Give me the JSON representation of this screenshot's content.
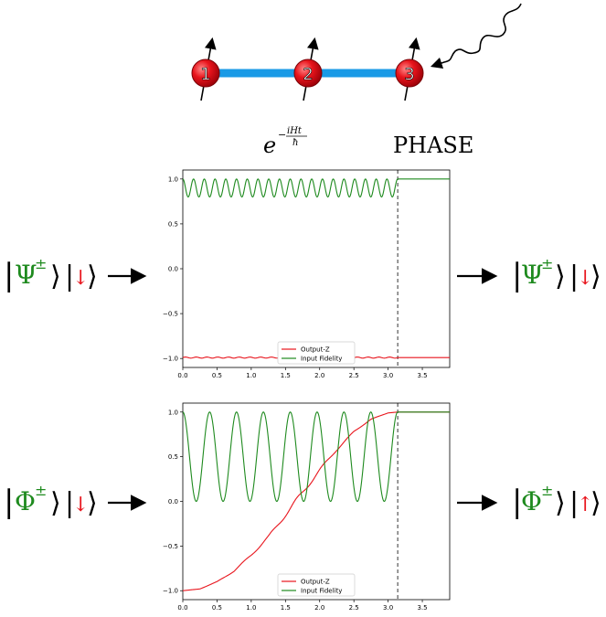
{
  "chain": {
    "qubits": [
      "1",
      "2",
      "3"
    ],
    "colors": {
      "bond": "#1a9ae6",
      "ball": "#e8141c"
    }
  },
  "labels": {
    "evolution": "e",
    "evolution_exponent_num": "iHt",
    "evolution_exponent_den": "ħ",
    "phase": "PHASE"
  },
  "states": {
    "row1_in": {
      "greek": "Ψ",
      "sup": "±",
      "spin": "↓"
    },
    "row1_out": {
      "greek": "Ψ",
      "sup": "±",
      "spin": "↓"
    },
    "row2_in": {
      "greek": "Φ",
      "sup": "±",
      "spin": "↓"
    },
    "row2_out": {
      "greek": "Φ",
      "sup": "±",
      "spin": "↑"
    },
    "colors": {
      "greek": "#1e8a1e",
      "spin": "#e8141c"
    }
  },
  "chart_data": [
    {
      "type": "line",
      "title": "",
      "xlabel": "",
      "ylabel": "",
      "xlim": [
        0,
        3.9
      ],
      "ylim": [
        -1.1,
        1.1
      ],
      "xticks": [
        "0.0",
        "0.5",
        "1.0",
        "1.5",
        "2.0",
        "2.5",
        "3.0",
        "3.5"
      ],
      "yticks": [
        "1.0",
        "0.5",
        "0.0",
        "−0.5",
        "−1.0"
      ],
      "vline_x": 3.14,
      "legend": "bottom-center",
      "series": [
        {
          "name": "Output-Z",
          "color": "#e8141c",
          "x": [
            0,
            3.14,
            3.9
          ],
          "y": [
            -0.99,
            -0.99,
            -0.99
          ]
        },
        {
          "name": "Input Fidelity",
          "color": "#1e8a1e",
          "x": [
            0,
            0.1,
            0.2,
            0.3,
            0.5,
            1.0,
            1.5,
            2.0,
            2.5,
            3.0,
            3.14,
            3.9
          ],
          "y": [
            1.0,
            0.8,
            0.98,
            0.8,
            0.9,
            0.9,
            0.9,
            0.9,
            0.9,
            0.9,
            1.0,
            1.0
          ],
          "oscillation": {
            "min": 0.8,
            "max": 1.0,
            "cycles": 20
          }
        }
      ]
    },
    {
      "type": "line",
      "title": "",
      "xlabel": "",
      "ylabel": "",
      "xlim": [
        0,
        3.9
      ],
      "ylim": [
        -1.1,
        1.1
      ],
      "xticks": [
        "0.0",
        "0.5",
        "1.0",
        "1.5",
        "2.0",
        "2.5",
        "3.0",
        "3.5"
      ],
      "yticks": [
        "1.0",
        "0.5",
        "0.0",
        "−0.5",
        "−1.0"
      ],
      "vline_x": 3.14,
      "legend": "bottom-center",
      "series": [
        {
          "name": "Output-Z",
          "color": "#e8141c",
          "x": [
            0,
            0.25,
            0.5,
            0.75,
            1.0,
            1.25,
            1.5,
            1.75,
            2.0,
            2.25,
            2.5,
            2.75,
            3.0,
            3.14,
            3.9
          ],
          "y": [
            -1.0,
            -0.98,
            -0.9,
            -0.78,
            -0.6,
            -0.4,
            -0.15,
            0.1,
            0.35,
            0.58,
            0.78,
            0.92,
            0.99,
            1.0,
            1.0
          ]
        },
        {
          "name": "Input Fidelity",
          "color": "#1e8a1e",
          "x": [
            0,
            0.2,
            0.4,
            0.6,
            0.8,
            1.0,
            1.2,
            1.4,
            1.6,
            1.8,
            2.0,
            2.2,
            2.4,
            2.6,
            2.8,
            3.0,
            3.14,
            3.9
          ],
          "y": [
            1.0,
            0.0,
            1.0,
            0.0,
            1.0,
            0.0,
            1.0,
            0.0,
            1.0,
            0.0,
            1.0,
            0.0,
            1.0,
            0.0,
            1.0,
            0.0,
            1.0,
            1.0
          ],
          "oscillation": {
            "min": 0.0,
            "max": 1.0,
            "cycles": 8
          }
        }
      ]
    }
  ]
}
